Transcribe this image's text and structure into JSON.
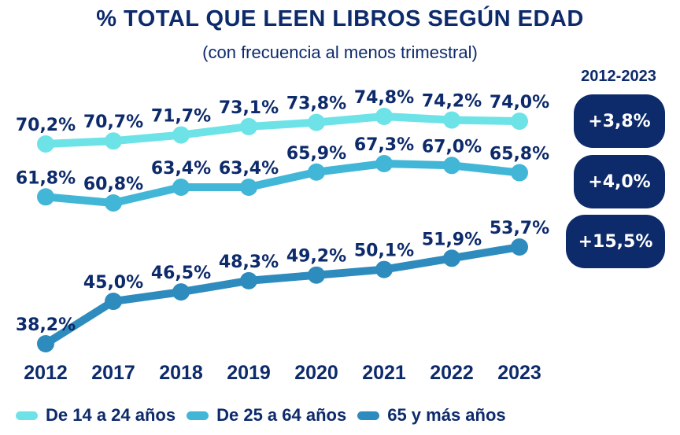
{
  "chart_data": {
    "type": "line",
    "title": "% TOTAL QUE LEEN LIBROS SEGÚN EDAD",
    "subtitle": "(con frecuencia al menos trimestral)",
    "xlabel": "",
    "ylabel": "",
    "x": [
      "2012",
      "2017",
      "2018",
      "2019",
      "2020",
      "2021",
      "2022",
      "2023"
    ],
    "series": [
      {
        "name": "De 14 a 24 años",
        "color": "#6de3e8",
        "values": [
          70.2,
          70.7,
          71.7,
          73.1,
          73.8,
          74.8,
          74.2,
          74.0
        ],
        "labels": [
          "70,2%",
          "70,7%",
          "71,7%",
          "73,1%",
          "73,8%",
          "74,8%",
          "74,2%",
          "74,0%"
        ]
      },
      {
        "name": "De 25 a 64 años",
        "color": "#41b6d6",
        "values": [
          61.8,
          60.8,
          63.4,
          63.4,
          65.9,
          67.3,
          67.0,
          65.8
        ],
        "labels": [
          "61,8%",
          "60,8%",
          "63,4%",
          "63,4%",
          "65,9%",
          "67,3%",
          "67,0%",
          "65,8%"
        ]
      },
      {
        "name": "65 y más años",
        "color": "#2e8bbd",
        "values": [
          38.2,
          45.0,
          46.5,
          48.3,
          49.2,
          50.1,
          51.9,
          53.7
        ],
        "labels": [
          "38,2%",
          "45,0%",
          "46,5%",
          "48,3%",
          "49,2%",
          "50,1%",
          "51,9%",
          "53,7%"
        ]
      }
    ],
    "grid": false,
    "legend": "bottom",
    "change_period": "2012-2023",
    "changes": [
      "+3,8%",
      "+4,0%",
      "+15,5%"
    ]
  },
  "colors": {
    "text": "#0d2a6b",
    "badge": "#0d2a6b"
  }
}
